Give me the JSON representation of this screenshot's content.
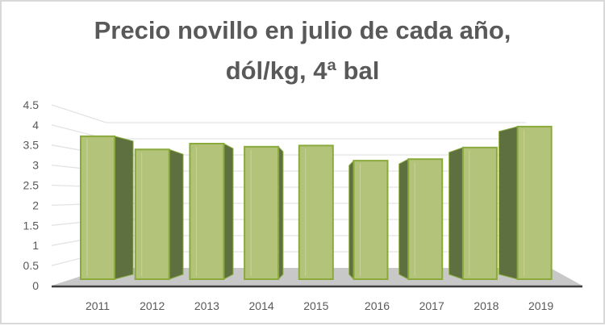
{
  "chart_data": {
    "type": "bar",
    "style": "3d-column",
    "title_lines": [
      "Precio novillo en julio de cada año,",
      "dól/kg, 4ª bal"
    ],
    "categories": [
      "2011",
      "2012",
      "2013",
      "2014",
      "2015",
      "2016",
      "2017",
      "2018",
      "2019"
    ],
    "values": [
      3.69,
      3.35,
      3.5,
      3.42,
      3.45,
      3.06,
      3.1,
      3.4,
      3.94
    ],
    "ylim": [
      0,
      4.5
    ],
    "yticks": [
      "0",
      "0.5",
      "1",
      "1.5",
      "2",
      "2.5",
      "3",
      "3.5",
      "4",
      "4.5"
    ],
    "xlabel": "",
    "ylabel": "",
    "grid": true,
    "legend": "none",
    "colors": {
      "bar_front": "#b3c47a",
      "bar_edge": "#8aaa3c",
      "bar_side": "#5f7040",
      "floor": "#c8c8c8",
      "grid": "#e3e3e3",
      "text": "#595959"
    }
  }
}
